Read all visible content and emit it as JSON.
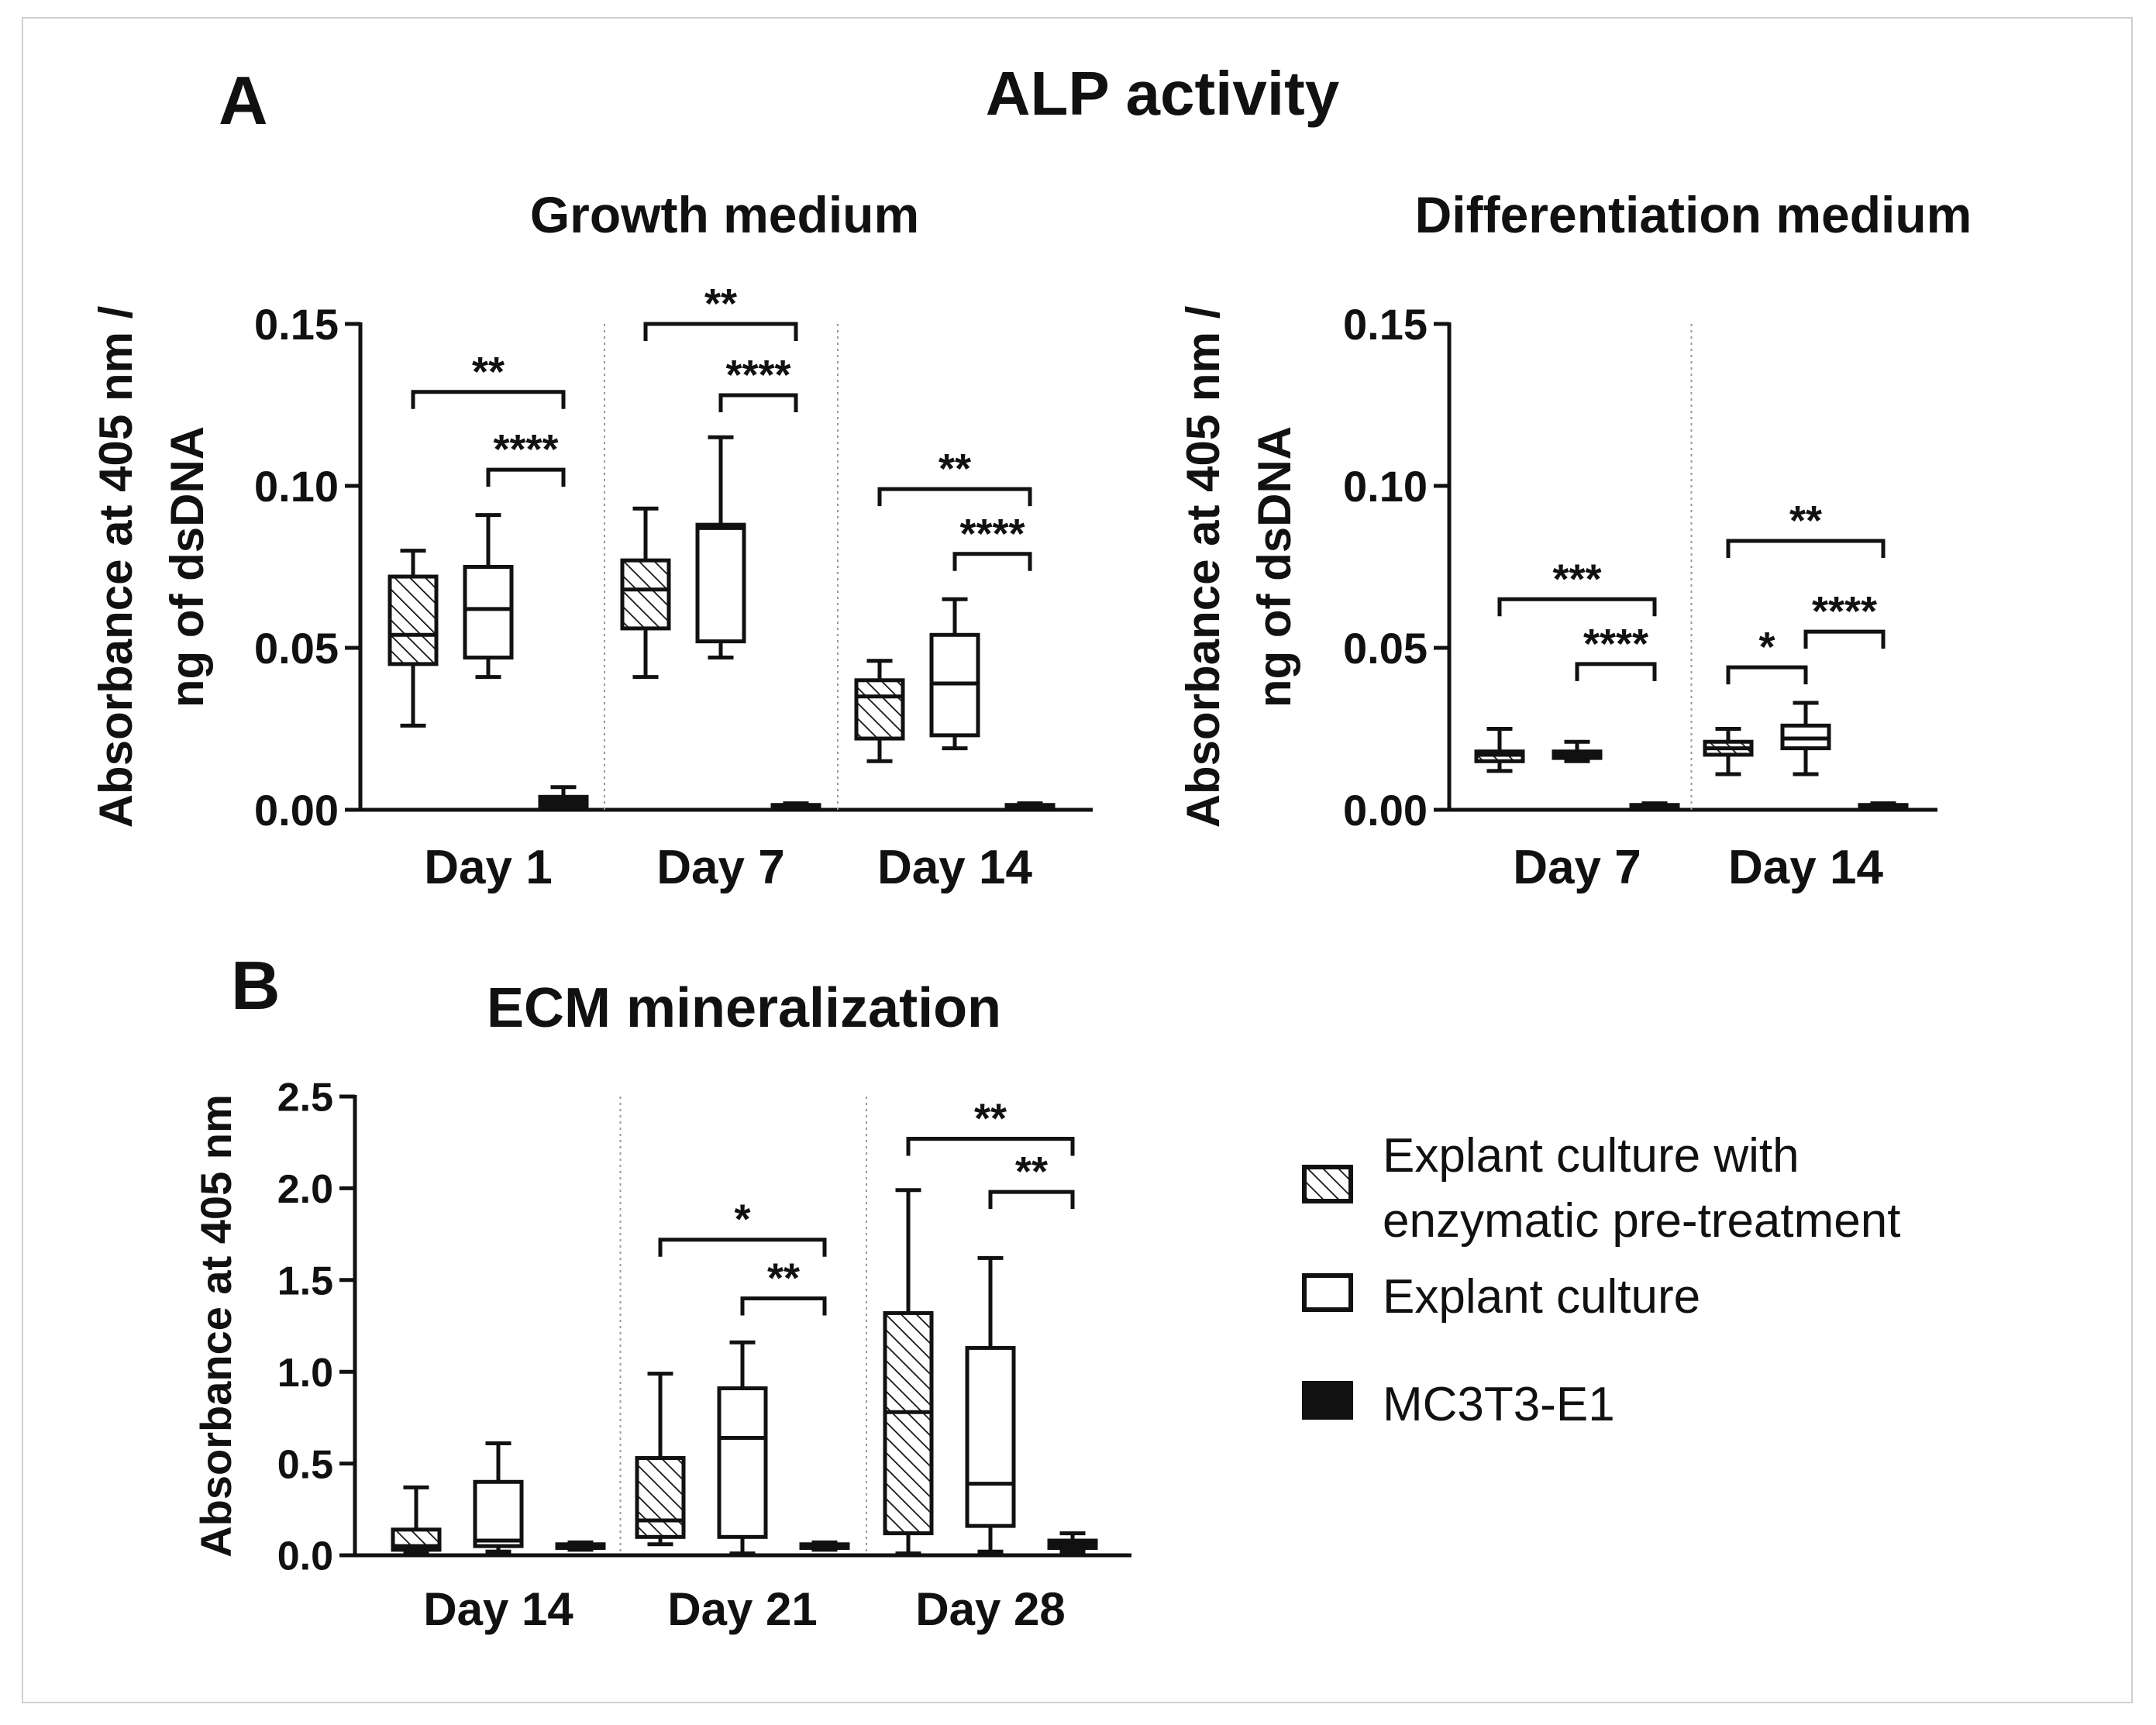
{
  "panel_labels": {
    "a": "A",
    "b": "B"
  },
  "section_title_a": "ALP activity",
  "colors": {
    "ink": "#111111",
    "divider": "#999999",
    "frame": "#cfcfcf"
  },
  "legend": [
    {
      "label_lines": [
        "Explant culture with",
        "enzymatic pre-treatment"
      ],
      "style": "hatched"
    },
    {
      "label_lines": [
        "Explant culture"
      ],
      "style": "open"
    },
    {
      "label_lines": [
        "MC3T3-E1"
      ],
      "style": "filled"
    }
  ],
  "chart_data": [
    {
      "type": "box",
      "title": "Growth medium",
      "ylabel_lines": [
        "Absorbance at 405 nm /",
        "ng of dsDNA"
      ],
      "ylim": [
        0,
        0.15
      ],
      "ticks": [
        "0.00",
        "0.05",
        "0.10",
        "0.15"
      ],
      "tick_values": [
        0,
        0.05,
        0.1,
        0.15
      ],
      "groups": [
        "Day 1",
        "Day 7",
        "Day 14"
      ],
      "boxes": [
        [
          {
            "style": "hatched",
            "min": 0.026,
            "q1": 0.045,
            "median": 0.054,
            "q3": 0.072,
            "max": 0.08
          },
          {
            "style": "open",
            "min": 0.041,
            "q1": 0.047,
            "median": 0.062,
            "q3": 0.075,
            "max": 0.091
          },
          {
            "style": "filled",
            "min": 0.0005,
            "q1": 0.001,
            "median": 0.003,
            "q3": 0.004,
            "max": 0.007
          }
        ],
        [
          {
            "style": "hatched",
            "min": 0.041,
            "q1": 0.056,
            "median": 0.068,
            "q3": 0.077,
            "max": 0.093
          },
          {
            "style": "open",
            "min": 0.047,
            "q1": 0.052,
            "median": 0.087,
            "q3": 0.088,
            "max": 0.115
          },
          {
            "style": "filled",
            "min": 0.0002,
            "q1": 0.0005,
            "median": 0.001,
            "q3": 0.0015,
            "max": 0.002
          }
        ],
        [
          {
            "style": "hatched",
            "min": 0.015,
            "q1": 0.022,
            "median": 0.035,
            "q3": 0.04,
            "max": 0.046
          },
          {
            "style": "open",
            "min": 0.019,
            "q1": 0.023,
            "median": 0.039,
            "q3": 0.054,
            "max": 0.065
          },
          {
            "style": "filled",
            "min": 0.0002,
            "q1": 0.0005,
            "median": 0.001,
            "q3": 0.0015,
            "max": 0.002
          }
        ]
      ],
      "significance": [
        {
          "group": 0,
          "from": 0,
          "to": 2,
          "y": 0.129,
          "label": "**"
        },
        {
          "group": 0,
          "from": 1,
          "to": 2,
          "y": 0.105,
          "label": "****"
        },
        {
          "group": 1,
          "from": 0,
          "to": 2,
          "y": 0.15,
          "label": "**"
        },
        {
          "group": 1,
          "from": 1,
          "to": 2,
          "y": 0.128,
          "label": "****"
        },
        {
          "group": 2,
          "from": 0,
          "to": 2,
          "y": 0.099,
          "label": "**"
        },
        {
          "group": 2,
          "from": 1,
          "to": 2,
          "y": 0.079,
          "label": "****"
        }
      ]
    },
    {
      "type": "box",
      "title": "Differentiation medium",
      "ylabel_lines": [
        "Absorbance at 405 nm /",
        "ng of dsDNA"
      ],
      "ylim": [
        0,
        0.15
      ],
      "ticks": [
        "0.00",
        "0.05",
        "0.10",
        "0.15"
      ],
      "tick_values": [
        0,
        0.05,
        0.1,
        0.15
      ],
      "groups": [
        "Day 7",
        "Day 14"
      ],
      "boxes": [
        [
          {
            "style": "hatched",
            "min": 0.012,
            "q1": 0.015,
            "median": 0.017,
            "q3": 0.018,
            "max": 0.025
          },
          {
            "style": "open",
            "min": 0.015,
            "q1": 0.016,
            "median": 0.017,
            "q3": 0.018,
            "max": 0.021
          },
          {
            "style": "filled",
            "min": 0.0002,
            "q1": 0.0005,
            "median": 0.001,
            "q3": 0.0015,
            "max": 0.002
          }
        ],
        [
          {
            "style": "hatched",
            "min": 0.011,
            "q1": 0.017,
            "median": 0.019,
            "q3": 0.021,
            "max": 0.025
          },
          {
            "style": "open",
            "min": 0.011,
            "q1": 0.019,
            "median": 0.022,
            "q3": 0.026,
            "max": 0.033
          },
          {
            "style": "filled",
            "min": 0.0002,
            "q1": 0.0005,
            "median": 0.001,
            "q3": 0.0015,
            "max": 0.002
          }
        ]
      ],
      "significance": [
        {
          "group": 0,
          "from": 0,
          "to": 2,
          "y": 0.065,
          "label": "***"
        },
        {
          "group": 0,
          "from": 1,
          "to": 2,
          "y": 0.045,
          "label": "****"
        },
        {
          "group": 1,
          "from": 0,
          "to": 2,
          "y": 0.083,
          "label": "**"
        },
        {
          "group": 1,
          "from": 0,
          "to": 1,
          "y": 0.044,
          "label": "*"
        },
        {
          "group": 1,
          "from": 1,
          "to": 2,
          "y": 0.055,
          "label": "****"
        }
      ]
    },
    {
      "type": "box",
      "title": "ECM mineralization",
      "ylabel_lines": [
        "Absorbance at 405 nm"
      ],
      "ylim": [
        0,
        2.5
      ],
      "ticks": [
        "0.0",
        "0.5",
        "1.0",
        "1.5",
        "2.0",
        "2.5"
      ],
      "tick_values": [
        0,
        0.5,
        1.0,
        1.5,
        2.0,
        2.5
      ],
      "groups": [
        "Day 14",
        "Day 21",
        "Day 28"
      ],
      "boxes": [
        [
          {
            "style": "hatched",
            "min": 0.01,
            "q1": 0.03,
            "median": 0.05,
            "q3": 0.14,
            "max": 0.37
          },
          {
            "style": "open",
            "min": 0.02,
            "q1": 0.05,
            "median": 0.08,
            "q3": 0.4,
            "max": 0.61
          },
          {
            "style": "filled",
            "min": 0.03,
            "q1": 0.04,
            "median": 0.05,
            "q3": 0.06,
            "max": 0.07
          }
        ],
        [
          {
            "style": "hatched",
            "min": 0.06,
            "q1": 0.1,
            "median": 0.19,
            "q3": 0.53,
            "max": 0.99
          },
          {
            "style": "open",
            "min": 0.01,
            "q1": 0.1,
            "median": 0.64,
            "q3": 0.91,
            "max": 1.16
          },
          {
            "style": "filled",
            "min": 0.03,
            "q1": 0.04,
            "median": 0.05,
            "q3": 0.06,
            "max": 0.07
          }
        ],
        [
          {
            "style": "hatched",
            "min": 0.01,
            "q1": 0.12,
            "median": 0.78,
            "q3": 1.32,
            "max": 1.99
          },
          {
            "style": "open",
            "min": 0.02,
            "q1": 0.16,
            "median": 0.39,
            "q3": 1.13,
            "max": 1.62
          },
          {
            "style": "filled",
            "min": 0.02,
            "q1": 0.04,
            "median": 0.06,
            "q3": 0.08,
            "max": 0.12
          }
        ]
      ],
      "significance": [
        {
          "group": 1,
          "from": 0,
          "to": 2,
          "y": 1.72,
          "label": "*"
        },
        {
          "group": 1,
          "from": 1,
          "to": 2,
          "y": 1.4,
          "label": "**"
        },
        {
          "group": 2,
          "from": 0,
          "to": 2,
          "y": 2.27,
          "label": "**"
        },
        {
          "group": 2,
          "from": 1,
          "to": 2,
          "y": 1.98,
          "label": "**"
        }
      ]
    }
  ]
}
